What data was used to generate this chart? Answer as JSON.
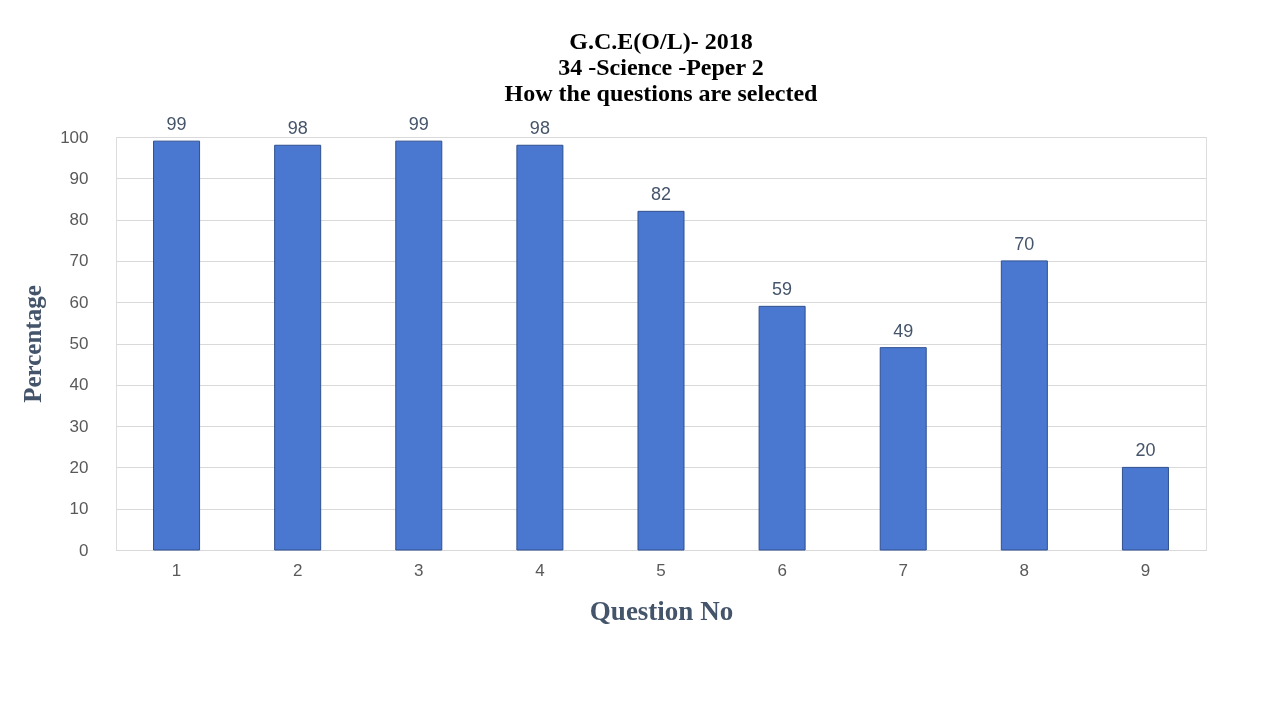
{
  "chart_data": {
    "type": "bar",
    "title": "G.C.E(O/L)- 2018\n34 -Science -Peper 2\nHow the questions are selected",
    "xlabel": "Question No",
    "ylabel": "Percentage",
    "categories": [
      "1",
      "2",
      "3",
      "4",
      "5",
      "6",
      "7",
      "8",
      "9"
    ],
    "values": [
      99,
      98,
      99,
      98,
      82,
      59,
      49,
      70,
      20
    ],
    "color": "#4a78d0",
    "ylim": [
      0,
      100
    ],
    "yticks": [
      0,
      10,
      20,
      30,
      40,
      50,
      60,
      70,
      80,
      90,
      100
    ],
    "grid": "y",
    "data_labels": true
  }
}
